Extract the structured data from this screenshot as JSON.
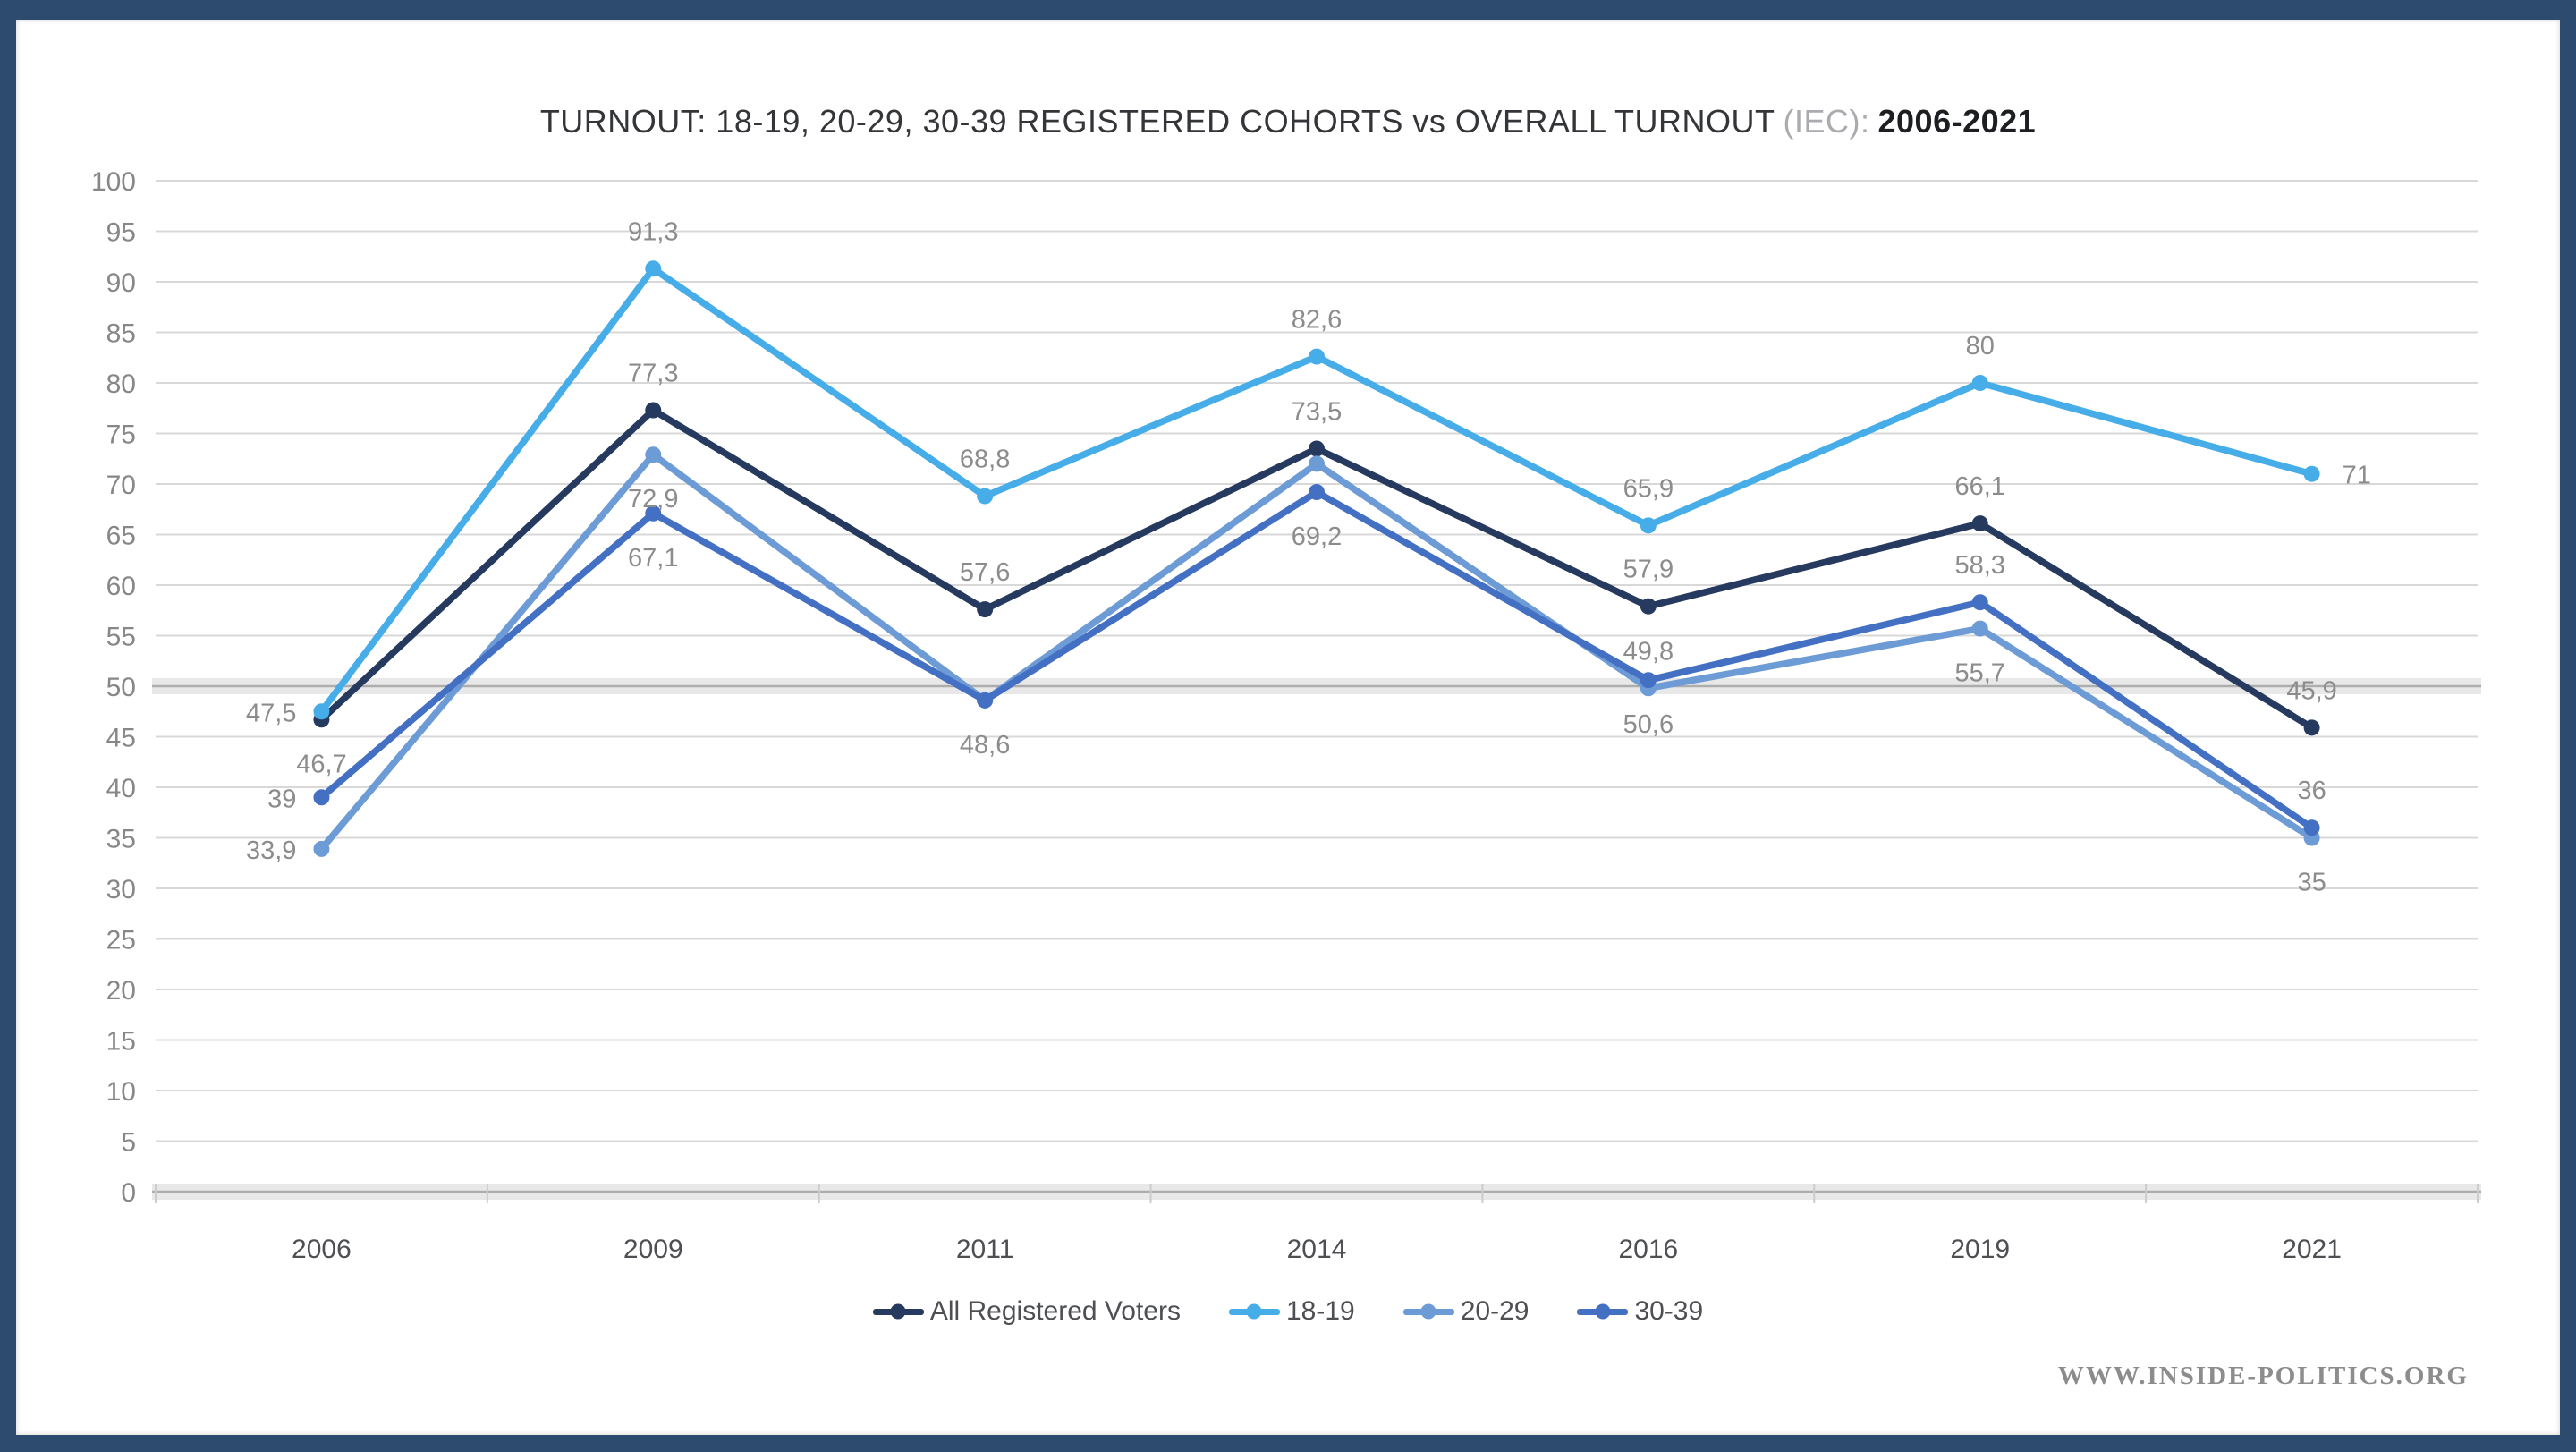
{
  "frame": {
    "border_color": "#2d4b6f",
    "background": "#ffffff"
  },
  "title": {
    "main": "TURNOUT: 18-19, 20-29, 30-39 REGISTERED COHORTS vs OVERALL TURNOUT",
    "iec": "(IEC):",
    "range": "2006-2021"
  },
  "watermark": "WWW.INSIDE-POLITICS.ORG",
  "chart_data": {
    "type": "line",
    "title": "TURNOUT: 18-19, 20-29, 30-39 REGISTERED COHORTS vs OVERALL TURNOUT (IEC): 2006-2021",
    "categories": [
      "2006",
      "2009",
      "2011",
      "2014",
      "2016",
      "2019",
      "2021"
    ],
    "y_axis": {
      "min": 0,
      "max": 100,
      "step": 5,
      "emphasized": [
        0,
        50
      ]
    },
    "grid": "horizontal",
    "legend_position": "bottom",
    "colors": {
      "gridline": "#d8d8d8",
      "emphasized_band": "#e8e8e8",
      "emphasized_line": "#adadad",
      "y_tick_text": "#878787",
      "x_tick_text": "#4d4f52",
      "data_label_text": "#8c8c8c"
    },
    "series": [
      {
        "name": "All Registered Voters",
        "color": "#253a5e",
        "values": [
          46.7,
          77.3,
          57.6,
          73.5,
          57.9,
          66.1,
          45.9
        ],
        "labels": [
          "46,7",
          "77,3",
          "57,6",
          "73,5",
          "57,9",
          "66,1",
          "45,9"
        ],
        "label_pos": [
          "below",
          "above",
          "above",
          "above",
          "above",
          "above",
          "above"
        ]
      },
      {
        "name": "18-19",
        "color": "#47ade8",
        "values": [
          47.5,
          91.3,
          68.8,
          82.6,
          65.9,
          80,
          71
        ],
        "labels": [
          "47,5",
          "91,3",
          "68,8",
          "82,6",
          "65,9",
          "80",
          "71"
        ],
        "label_pos": [
          "left",
          "above",
          "above",
          "above",
          "above",
          "above",
          "right"
        ]
      },
      {
        "name": "20-29",
        "color": "#6d9bd5",
        "values": [
          33.9,
          72.9,
          48.6,
          72,
          49.8,
          55.7,
          35
        ],
        "labels": [
          "33,9",
          "72,9",
          "48,6",
          "",
          "49,8",
          "55,7",
          "35"
        ],
        "label_pos": [
          "left",
          "below",
          "below",
          "none",
          "above",
          "below",
          "below"
        ]
      },
      {
        "name": "30-39",
        "color": "#4470c4",
        "values": [
          39,
          67.1,
          48.6,
          69.2,
          50.6,
          58.3,
          36
        ],
        "labels": [
          "39",
          "67,1",
          "",
          "69,2",
          "50,6",
          "58,3",
          "36"
        ],
        "label_pos": [
          "left",
          "below",
          "none",
          "below",
          "below",
          "above",
          "above"
        ]
      }
    ]
  }
}
